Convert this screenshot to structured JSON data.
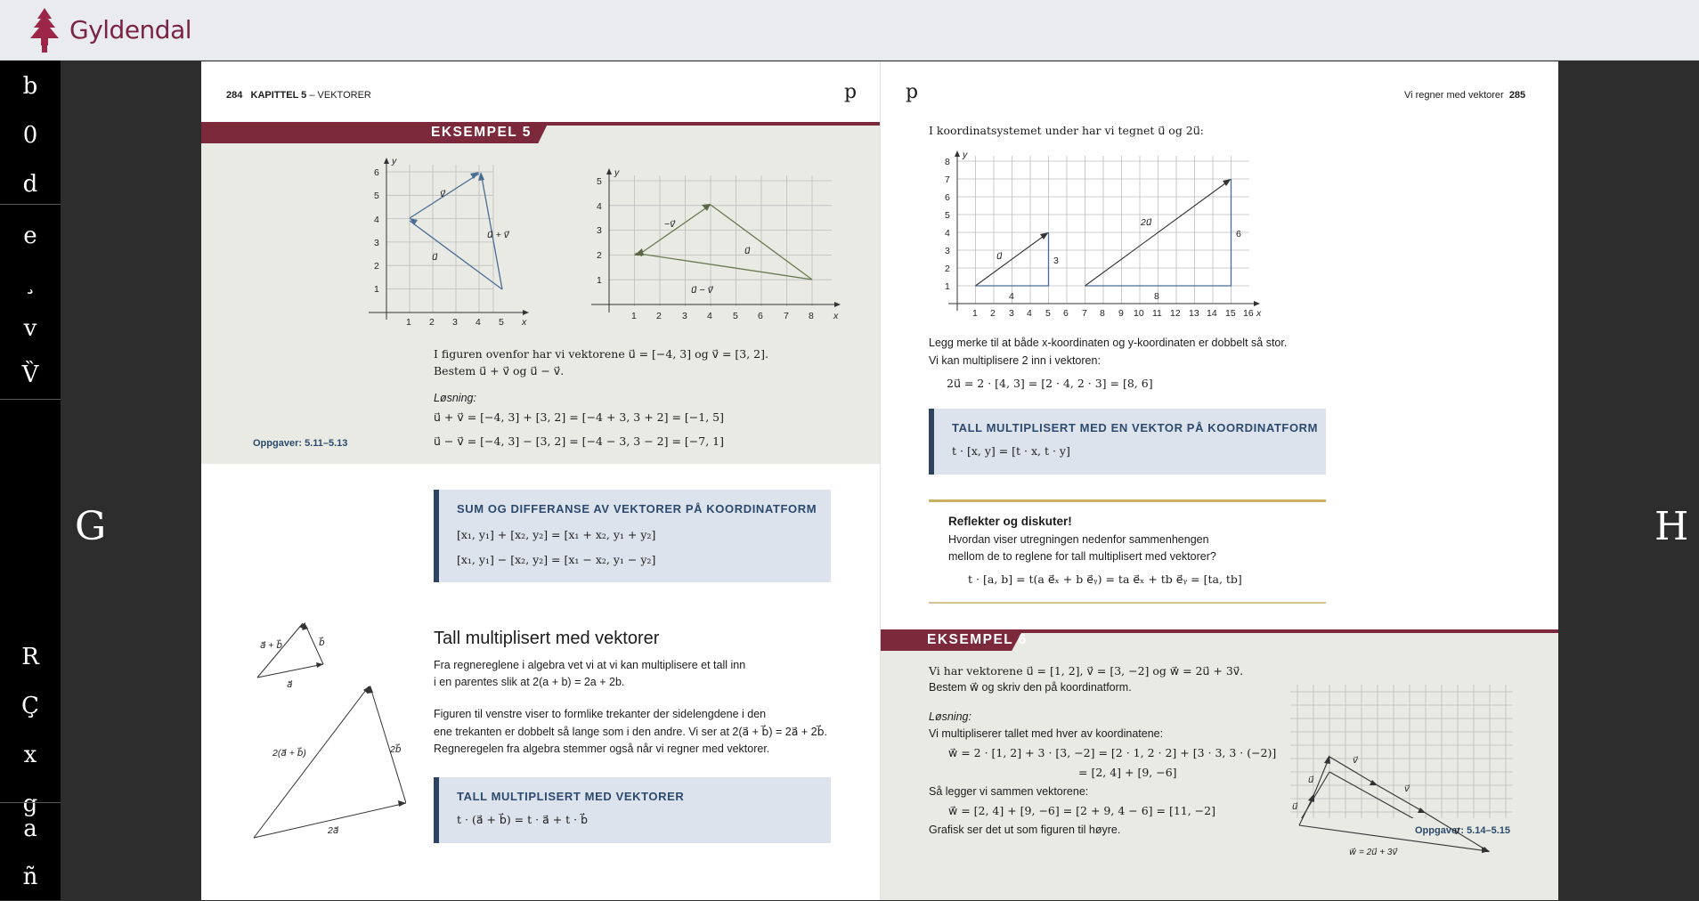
{
  "app": {
    "brand": "Gyldendal"
  },
  "sidebar": {
    "top": [
      "b",
      "0",
      "d"
    ],
    "middle": [
      "e",
      "¸",
      "v",
      "V̏"
    ],
    "lower": [
      "R",
      "Ç",
      "x",
      "g"
    ],
    "bottom": [
      "a",
      "ñ"
    ]
  },
  "nav": {
    "prev": "G",
    "next": "H"
  },
  "left_page": {
    "page_number": "284",
    "chapter": "KAPITTEL 5",
    "chapter_sep": "–",
    "chapter_title": "VEKTORER",
    "corner_mark": "p",
    "example_label": "EKSEMPEL 5",
    "example_text_1": "I figuren ovenfor har vi vektorene u⃗ = [−4, 3] og v⃗ = [3, 2].",
    "example_text_2": "Bestem u⃗ + v⃗ og u⃗ − v⃗.",
    "solution_label": "Løsning:",
    "solution_1": "u⃗ + v⃗ = [−4, 3] + [3, 2] = [−4 + 3, 3 + 2] = [−1, 5]",
    "solution_2": "u⃗ − v⃗ = [−4, 3] − [3, 2] = [−4 − 3, 3 − 2] = [−7, 1]",
    "exercises": "Oppgaver: 5.11–5.13",
    "box1_title": "SUM OG DIFFERANSE AV VEKTORER PÅ KOORDINATFORM",
    "box1_line1": "[x₁, y₁] + [x₂, y₂] = [x₁ + x₂, y₁ + y₂]",
    "box1_line2": "[x₁, y₁] − [x₂, y₂] = [x₁ − x₂, y₁ − y₂]",
    "section_title": "Tall multiplisert med vektorer",
    "para1_1": "Fra regnereglene i algebra vet vi at vi kan multiplisere et tall inn",
    "para1_2": "i en parentes slik at 2(a + b) = 2a + 2b.",
    "para2_1": "Figuren til venstre viser to formlike trekanter der sidelengdene i den",
    "para2_2": "ene trekanten er dobbelt så lange som i den andre. Vi ser at 2(a⃗ + b⃗) = 2a⃗ + 2b⃗.",
    "para2_3": "Regneregelen fra algebra stemmer også når vi regner med vektorer.",
    "box2_title": "TALL MULTIPLISERT MED VEKTORER",
    "box2_line1": "t · (a⃗ + b⃗) = t · a⃗ + t · b⃗",
    "fig1_labels": {
      "u": "u⃗",
      "v": "v⃗",
      "sum": "u⃗ + v⃗"
    },
    "fig2_labels": {
      "negv": "−v⃗",
      "u": "u⃗",
      "diff": "u⃗ − v⃗"
    },
    "tri_labels": {
      "a": "a⃗",
      "b": "b⃗",
      "ab": "a⃗ + b⃗",
      "a2": "2a⃗",
      "b2": "2b⃗",
      "ab2": "2(a⃗ + b⃗)"
    }
  },
  "right_page": {
    "page_number": "285",
    "running_head": "Vi regner med vektorer",
    "corner_mark": "p",
    "intro": "I koordinatsystemet under har vi tegnet u⃗ og 2u⃗:",
    "fig_labels": {
      "u": "u⃗",
      "u2": "2u⃗",
      "n3": "3",
      "n4": "4",
      "n6": "6",
      "n8": "8"
    },
    "note_1": "Legg merke til at både x-koordinaten og y-koordinaten er dobbelt så stor.",
    "note_2": "Vi kan multiplisere 2 inn i vektoren:",
    "calc": "2u⃗ = 2 · [4, 3] = [2 · 4, 2 · 3] = [8, 6]",
    "box_title": "TALL MULTIPLISERT MED EN VEKTOR PÅ KOORDINATFORM",
    "box_line": "t · [x, y] = [t · x, t · y]",
    "reflect_title": "Reflekter og diskuter!",
    "reflect_1": "Hvordan viser utregningen nedenfor sammenhengen",
    "reflect_2": "mellom de to reglene for tall multiplisert med vektorer?",
    "reflect_formula": "t · [a, b] = t(a e⃗ₓ + b e⃗ᵧ) = ta e⃗ₓ + tb e⃗ᵧ = [ta, tb]",
    "example_label": "EKSEMPEL 6",
    "ex_1": "Vi har vektorene u⃗ = [1, 2], v⃗ = [3, −2] og w⃗ = 2u⃗ + 3v⃗.",
    "ex_2": "Bestem w⃗ og skriv den på koordinatform.",
    "solution_label": "Løsning:",
    "sol_1": "Vi multipliserer tallet med hver av koordinatene:",
    "sol_2": "w⃗ = 2 · [1, 2] + 3 · [3, −2] = [2 · 1, 2 · 2] + [3 · 3, 3 · (−2)]",
    "sol_3": "= [2, 4] + [9, −6]",
    "sol_4": "Så legger vi sammen vektorene:",
    "sol_5": "w⃗ = [2, 4] + [9, −6] = [2 + 9, 4 − 6] = [11, −2]",
    "sol_6": "Grafisk ser det ut som figuren til høyre.",
    "exercises": "Oppgaver: 5.14–5.15",
    "fig6_labels": {
      "u": "u⃗",
      "v": "v⃗",
      "w": "w⃗ = 2u⃗ + 3v⃗"
    }
  },
  "axes": {
    "x": "x",
    "y": "y"
  },
  "colors": {
    "brand": "#7b2442",
    "ribbon": "#7c2a3b",
    "box_bar": "#2c4462",
    "box_bg": "#dde3ec",
    "band": "#e8eae3",
    "gold": "#c9b062"
  }
}
